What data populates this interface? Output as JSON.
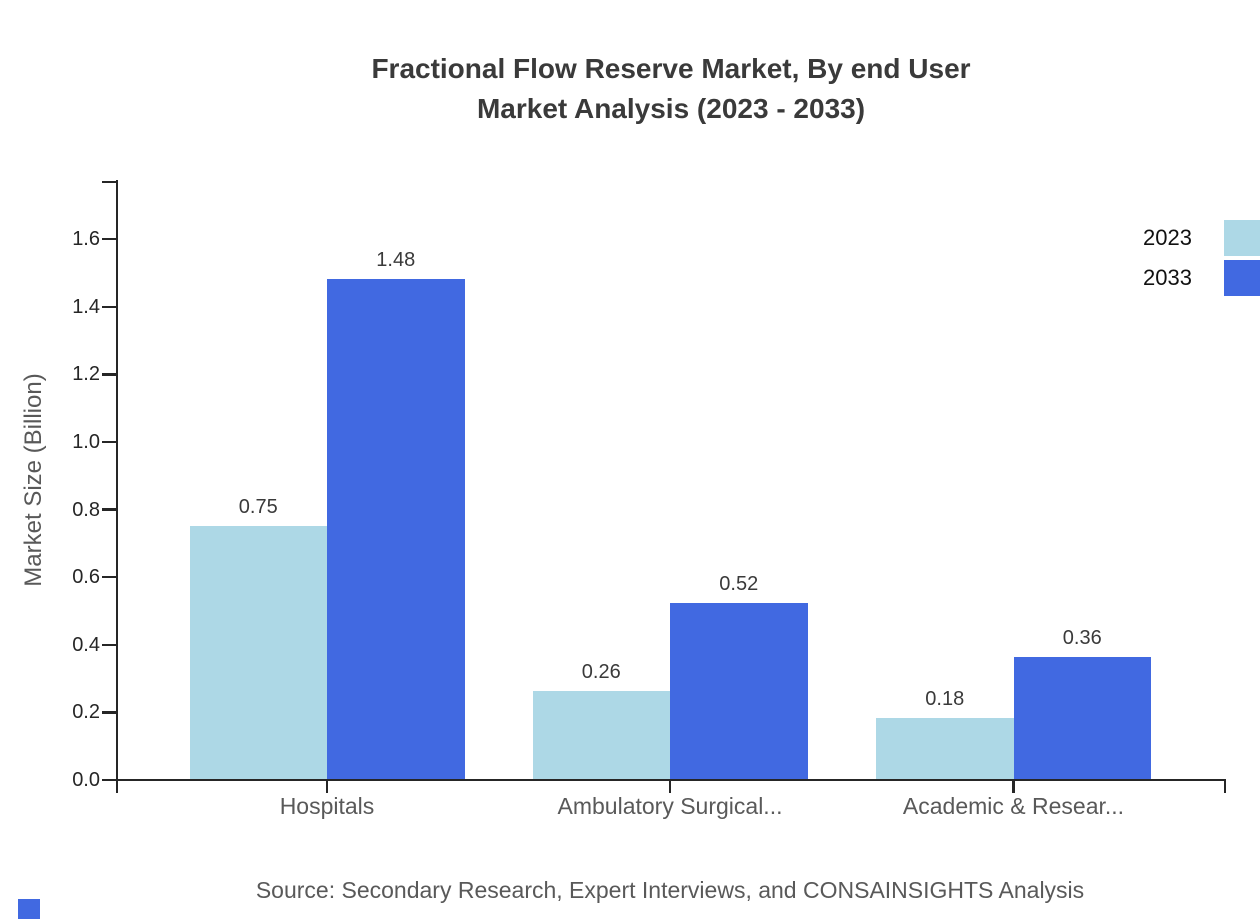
{
  "chart_data": {
    "type": "bar",
    "title": "Fractional Flow Reserve Market, By end User",
    "subtitle": "Market Analysis (2023 - 2033)",
    "ylabel": "Market Size (Billion)",
    "categories": [
      "Hospitals",
      "Ambulatory Surgical...",
      "Academic & Resear..."
    ],
    "series": [
      {
        "name": "2023",
        "color": "#ADD8E6",
        "values": [
          0.75,
          0.26,
          0.18
        ]
      },
      {
        "name": "2033",
        "color": "#4169E1",
        "values": [
          1.48,
          0.52,
          0.36
        ]
      }
    ],
    "value_labels": [
      "0.75",
      "1.48",
      "0.26",
      "0.52",
      "0.18",
      "0.36"
    ],
    "yticks": [
      0.0,
      0.2,
      0.4,
      0.6,
      0.8,
      1.0,
      1.2,
      1.4,
      1.6
    ],
    "ylim": [
      0,
      1.78
    ],
    "grid": false,
    "legend_position": "top-right",
    "legend": [
      {
        "label": "2023",
        "color": "#ADD8E6"
      },
      {
        "label": "2033",
        "color": "#4169E1"
      }
    ]
  },
  "source": "Source: Secondary Research, Expert Interviews, and CONSAINSIGHTS Analysis",
  "colors": {
    "axis": "#262626",
    "title": "#3a3a3a",
    "tick_label": "#262626",
    "category_label": "#595959",
    "value_label": "#3a3a3a",
    "source": "#595959",
    "legend_label": "#111111",
    "logo": "#4169E1"
  }
}
